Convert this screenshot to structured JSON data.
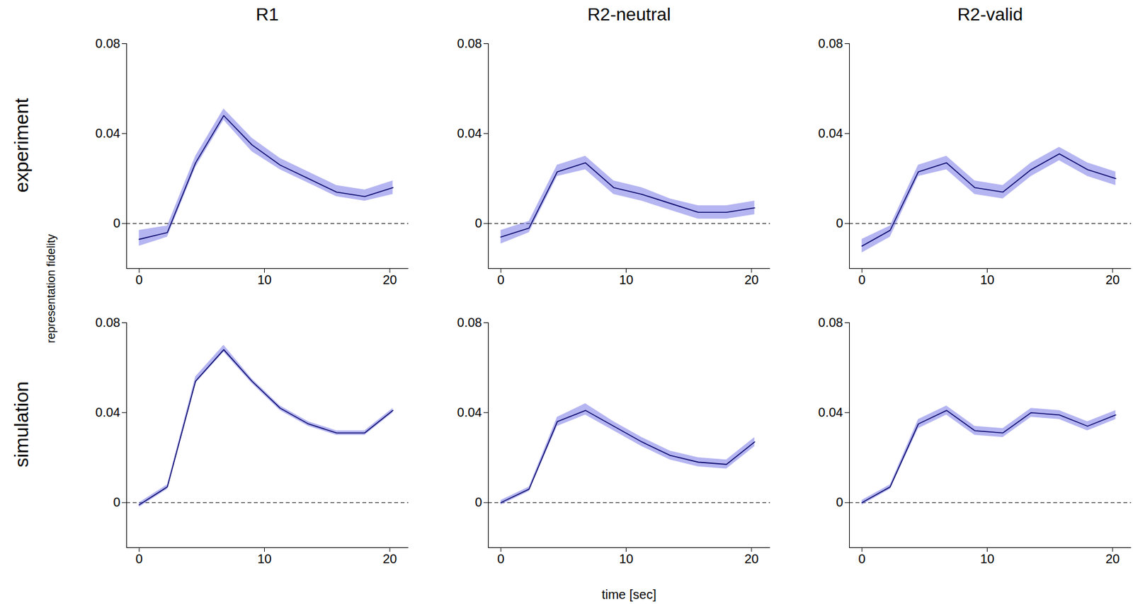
{
  "chart_data": [
    {
      "type": "line",
      "title": "R1",
      "row_label": "experiment",
      "ylabel": "representation fidelity",
      "x": [
        0,
        2.25,
        4.5,
        6.75,
        9,
        11.25,
        13.5,
        15.75,
        18,
        20.25
      ],
      "values": [
        -0.007,
        -0.004,
        0.027,
        0.048,
        0.035,
        0.026,
        0.02,
        0.014,
        0.012,
        0.016
      ],
      "lower": [
        -0.01,
        -0.006,
        0.025,
        0.046,
        0.032,
        0.024,
        0.018,
        0.012,
        0.01,
        0.013
      ],
      "upper": [
        -0.003,
        -0.001,
        0.03,
        0.051,
        0.038,
        0.029,
        0.023,
        0.017,
        0.015,
        0.019
      ],
      "color": "#0c0c6e",
      "xlim": [
        -1,
        21.5
      ],
      "xticks": [
        0,
        10,
        20
      ],
      "ylim": [
        -0.02,
        0.08
      ],
      "yticks": [
        0,
        0.04,
        0.08
      ],
      "baseline": 0
    },
    {
      "type": "line",
      "title": "R2-neutral",
      "x": [
        0,
        2.25,
        4.5,
        6.75,
        9,
        11.25,
        13.5,
        15.75,
        18,
        20.25
      ],
      "values": [
        -0.006,
        -0.002,
        0.023,
        0.027,
        0.016,
        0.013,
        0.009,
        0.005,
        0.005,
        0.007
      ],
      "lower": [
        -0.009,
        -0.004,
        0.021,
        0.024,
        0.013,
        0.01,
        0.006,
        0.002,
        0.002,
        0.004
      ],
      "upper": [
        -0.003,
        0.001,
        0.026,
        0.03,
        0.019,
        0.016,
        0.011,
        0.008,
        0.008,
        0.01
      ],
      "color": "#0c0c6e",
      "xlim": [
        -1,
        21.5
      ],
      "xticks": [
        0,
        10,
        20
      ],
      "ylim": [
        -0.02,
        0.08
      ],
      "yticks": [
        0,
        0.04,
        0.08
      ],
      "baseline": 0
    },
    {
      "type": "line",
      "title": "R2-valid",
      "x": [
        0,
        2.25,
        4.5,
        6.75,
        9,
        11.25,
        13.5,
        15.75,
        18,
        20.25
      ],
      "values": [
        -0.01,
        -0.003,
        0.023,
        0.027,
        0.016,
        0.014,
        0.024,
        0.031,
        0.024,
        0.02
      ],
      "lower": [
        -0.013,
        -0.006,
        0.021,
        0.024,
        0.013,
        0.011,
        0.021,
        0.028,
        0.021,
        0.017
      ],
      "upper": [
        -0.007,
        -0.001,
        0.026,
        0.03,
        0.019,
        0.017,
        0.027,
        0.034,
        0.027,
        0.023
      ],
      "color": "#0c0c6e",
      "xlim": [
        -1,
        21.5
      ],
      "xticks": [
        0,
        10,
        20
      ],
      "ylim": [
        -0.02,
        0.08
      ],
      "yticks": [
        0,
        0.04,
        0.08
      ],
      "baseline": 0
    },
    {
      "type": "line",
      "row_label": "simulation",
      "x": [
        0,
        2.25,
        4.5,
        6.75,
        9,
        11.25,
        13.5,
        15.75,
        18,
        20.25
      ],
      "values": [
        -0.001,
        0.007,
        0.054,
        0.068,
        0.054,
        0.042,
        0.035,
        0.031,
        0.031,
        0.041
      ],
      "lower": [
        -0.002,
        0.006,
        0.053,
        0.067,
        0.053,
        0.041,
        0.034,
        0.03,
        0.03,
        0.04
      ],
      "upper": [
        0.0,
        0.008,
        0.056,
        0.07,
        0.055,
        0.043,
        0.036,
        0.032,
        0.032,
        0.042
      ],
      "color": "#0c0c6e",
      "xlim": [
        -1,
        21.5
      ],
      "xticks": [
        0,
        10,
        20
      ],
      "ylim": [
        -0.02,
        0.08
      ],
      "yticks": [
        0,
        0.04,
        0.08
      ],
      "baseline": 0
    },
    {
      "type": "line",
      "xlabel": "time [sec]",
      "x": [
        0,
        2.25,
        4.5,
        6.75,
        9,
        11.25,
        13.5,
        15.75,
        18,
        20.25
      ],
      "values": [
        0.0,
        0.006,
        0.036,
        0.041,
        0.034,
        0.027,
        0.021,
        0.018,
        0.017,
        0.027
      ],
      "lower": [
        -0.001,
        0.005,
        0.034,
        0.039,
        0.032,
        0.025,
        0.019,
        0.016,
        0.015,
        0.025
      ],
      "upper": [
        0.001,
        0.007,
        0.038,
        0.044,
        0.036,
        0.029,
        0.023,
        0.02,
        0.019,
        0.029
      ],
      "color": "#0c0c6e",
      "xlim": [
        -1,
        21.5
      ],
      "xticks": [
        0,
        10,
        20
      ],
      "ylim": [
        -0.02,
        0.08
      ],
      "yticks": [
        0,
        0.04,
        0.08
      ],
      "baseline": 0
    },
    {
      "type": "line",
      "x": [
        0,
        2.25,
        4.5,
        6.75,
        9,
        11.25,
        13.5,
        15.75,
        18,
        20.25
      ],
      "values": [
        0.0,
        0.007,
        0.035,
        0.041,
        0.032,
        0.031,
        0.04,
        0.039,
        0.034,
        0.039
      ],
      "lower": [
        -0.001,
        0.006,
        0.033,
        0.039,
        0.03,
        0.029,
        0.038,
        0.037,
        0.032,
        0.037
      ],
      "upper": [
        0.001,
        0.008,
        0.037,
        0.043,
        0.034,
        0.033,
        0.042,
        0.041,
        0.036,
        0.041
      ],
      "color": "#0c0c6e",
      "xlim": [
        -1,
        21.5
      ],
      "xticks": [
        0,
        10,
        20
      ],
      "ylim": [
        -0.02,
        0.08
      ],
      "yticks": [
        0,
        0.04,
        0.08
      ],
      "baseline": 0
    }
  ]
}
